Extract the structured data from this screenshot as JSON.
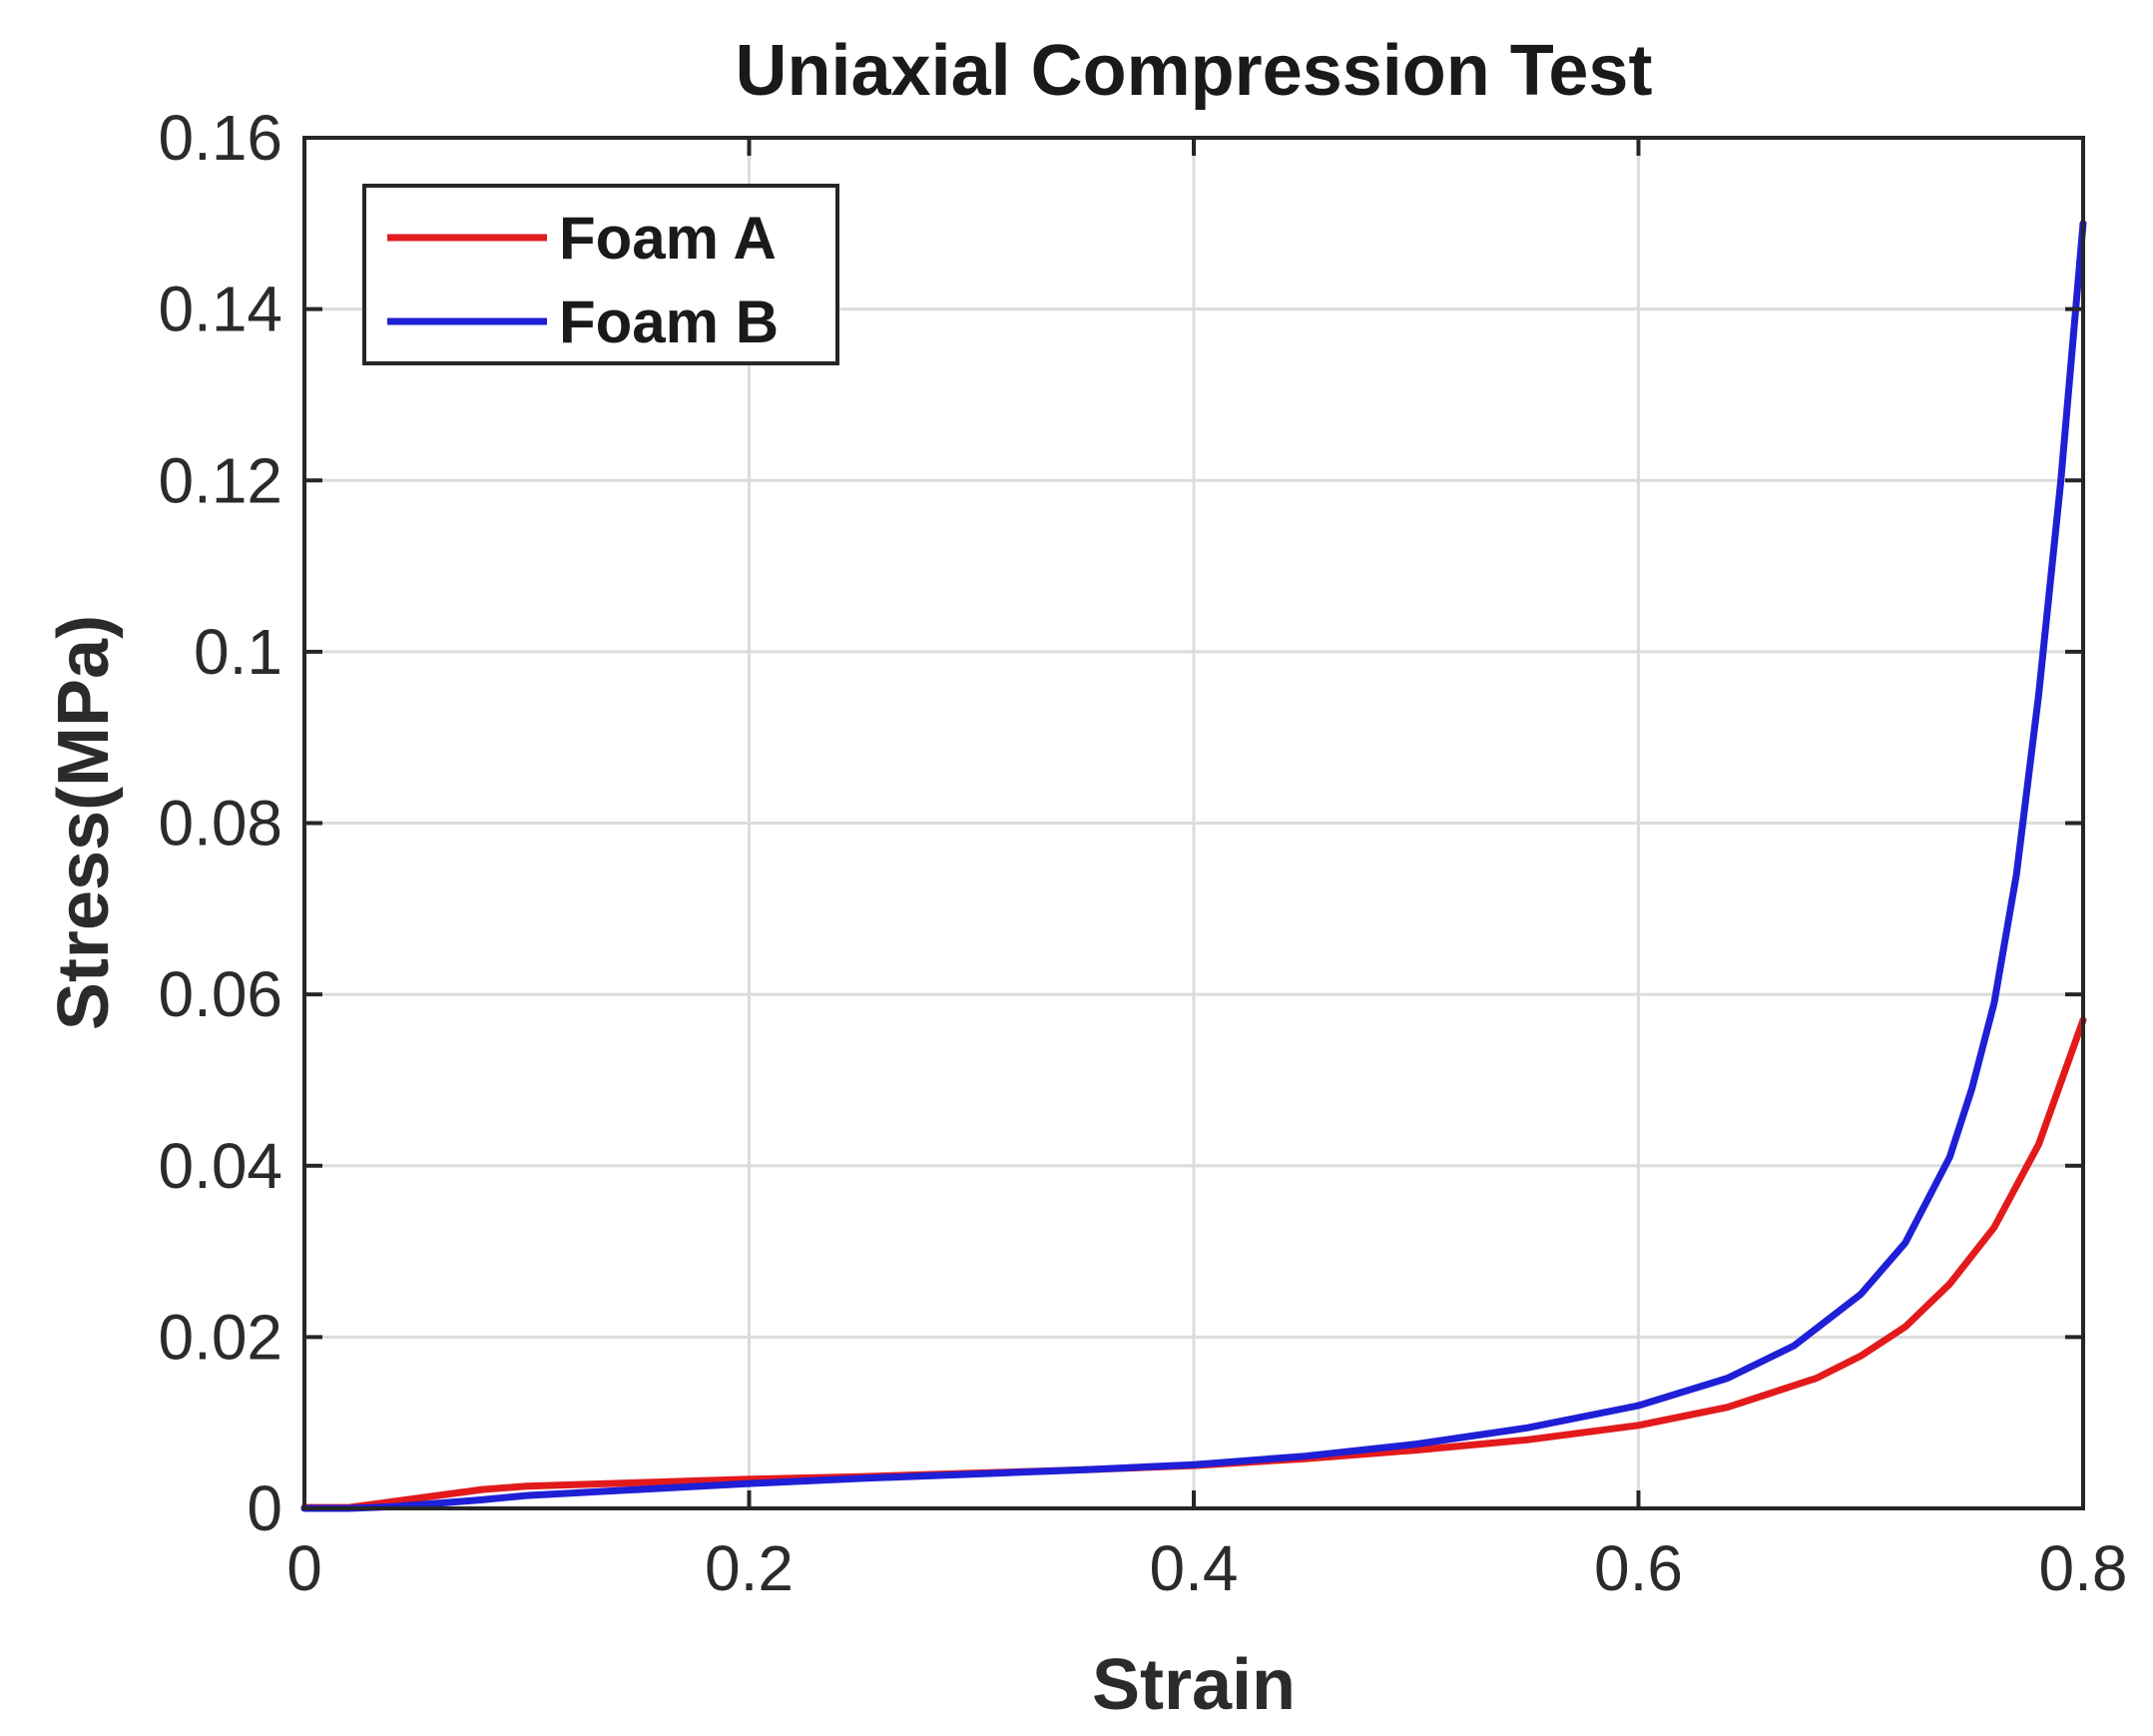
{
  "chart_data": {
    "type": "line",
    "title": "Uniaxial Compression Test",
    "xlabel": "Strain",
    "ylabel": "Stress(MPa)",
    "xlim": [
      0,
      0.8
    ],
    "ylim": [
      0,
      0.16
    ],
    "xticks": [
      "0",
      "0.2",
      "0.4",
      "0.6",
      "0.8"
    ],
    "yticks": [
      "0",
      "0.02",
      "0.04",
      "0.06",
      "0.08",
      "0.1",
      "0.12",
      "0.14",
      "0.16"
    ],
    "grid": true,
    "legend_position": "top-left",
    "series": [
      {
        "name": "Foam A",
        "color": "#e31a1c",
        "points": [
          [
            0,
            0.0001
          ],
          [
            0.02,
            0.0001
          ],
          [
            0.04,
            0.0008
          ],
          [
            0.06,
            0.0015
          ],
          [
            0.08,
            0.0022
          ],
          [
            0.1,
            0.0026
          ],
          [
            0.15,
            0.003
          ],
          [
            0.2,
            0.0034
          ],
          [
            0.25,
            0.0037
          ],
          [
            0.3,
            0.0041
          ],
          [
            0.35,
            0.0045
          ],
          [
            0.4,
            0.005
          ],
          [
            0.45,
            0.0058
          ],
          [
            0.5,
            0.0068
          ],
          [
            0.55,
            0.008
          ],
          [
            0.6,
            0.0097
          ],
          [
            0.64,
            0.0118
          ],
          [
            0.68,
            0.0152
          ],
          [
            0.7,
            0.0178
          ],
          [
            0.72,
            0.0212
          ],
          [
            0.74,
            0.0262
          ],
          [
            0.76,
            0.0328
          ],
          [
            0.78,
            0.0425
          ],
          [
            0.8,
            0.057
          ]
        ]
      },
      {
        "name": "Foam B",
        "color": "#1f1fd6",
        "points": [
          [
            0,
            0
          ],
          [
            0.02,
            0
          ],
          [
            0.04,
            0.0002
          ],
          [
            0.06,
            0.0006
          ],
          [
            0.08,
            0.001
          ],
          [
            0.1,
            0.0015
          ],
          [
            0.15,
            0.0022
          ],
          [
            0.2,
            0.0029
          ],
          [
            0.25,
            0.0035
          ],
          [
            0.3,
            0.004
          ],
          [
            0.35,
            0.0045
          ],
          [
            0.4,
            0.0051
          ],
          [
            0.45,
            0.0061
          ],
          [
            0.5,
            0.0075
          ],
          [
            0.55,
            0.0094
          ],
          [
            0.6,
            0.012
          ],
          [
            0.64,
            0.0152
          ],
          [
            0.67,
            0.019
          ],
          [
            0.7,
            0.025
          ],
          [
            0.72,
            0.031
          ],
          [
            0.74,
            0.041
          ],
          [
            0.75,
            0.049
          ],
          [
            0.76,
            0.059
          ],
          [
            0.77,
            0.074
          ],
          [
            0.78,
            0.095
          ],
          [
            0.79,
            0.12
          ],
          [
            0.8,
            0.15
          ]
        ]
      }
    ]
  }
}
